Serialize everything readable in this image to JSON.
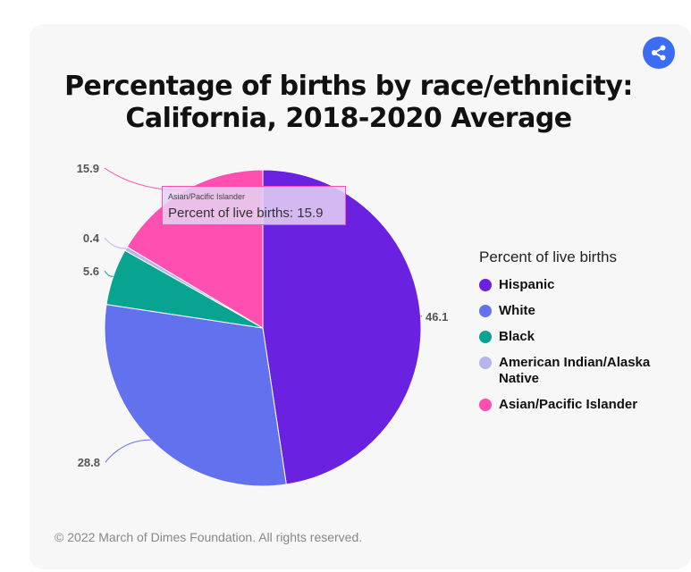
{
  "header": {
    "title_line1": "Percentage of births by race/ethnicity:",
    "title_line2": "California, 2018-2020 Average",
    "share_icon": "share-icon"
  },
  "chart_data": {
    "type": "pie",
    "title": "Percentage of births by race/ethnicity: California, 2018-2020 Average",
    "series_label": "Percent of live births",
    "categories": [
      "Hispanic",
      "White",
      "Black",
      "American Indian/Alaska Native",
      "Asian/Pacific Islander"
    ],
    "values": [
      46.1,
      28.8,
      5.6,
      0.4,
      15.9
    ],
    "data_labels": [
      "46.1",
      "28.8",
      "5.6",
      "0.4",
      "15.9"
    ],
    "colors": [
      "#6a22e0",
      "#6272ee",
      "#08a391",
      "#b5b4ec",
      "#ff4fb0"
    ],
    "legend_position": "right"
  },
  "legend": {
    "title": "Percent of live births",
    "items": [
      {
        "label": "Hispanic",
        "color": "#6a22e0"
      },
      {
        "label": "White",
        "color": "#6272ee"
      },
      {
        "label": "Black",
        "color": "#08a391"
      },
      {
        "label": "American Indian/Alaska Native",
        "color": "#b5b4ec"
      },
      {
        "label": "Asian/Pacific Islander",
        "color": "#ff4fb0"
      }
    ]
  },
  "tooltip": {
    "category": "Asian/Pacific Islander",
    "value_text": "Percent of live births: 15.9"
  },
  "footer": {
    "copyright": "© 2022 March of Dimes Foundation. All rights reserved."
  }
}
